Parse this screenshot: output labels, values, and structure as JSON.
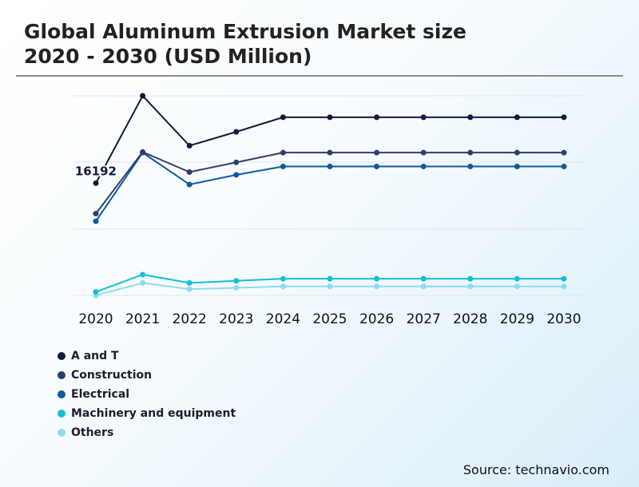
{
  "header": {
    "title_line1": "Global Aluminum Extrusion Market size",
    "title_line2": "2020 - 2030 (USD Million)"
  },
  "source": "Source: technavio.com",
  "chart_data": {
    "type": "line",
    "title": "Global Aluminum Extrusion Market size 2020 - 2030 (USD Million)",
    "x": [
      "2020",
      "2021",
      "2022",
      "2023",
      "2024",
      "2025",
      "2026",
      "2027",
      "2028",
      "2029",
      "2030"
    ],
    "grid": true,
    "legend_position": "bottom-left",
    "annotations": [
      {
        "series": "A and T",
        "x": "2020",
        "label": "16192"
      }
    ],
    "series": [
      {
        "name": "A and T",
        "color": "#0d1b3e",
        "values": [
          16192,
          28800,
          21600,
          23600,
          25700,
          25700,
          25700,
          25700,
          25700,
          25700,
          25700
        ]
      },
      {
        "name": "Construction",
        "color": "#2e3f6e",
        "values": [
          11800,
          20700,
          17800,
          19200,
          20600,
          20600,
          20600,
          20600,
          20600,
          20600,
          20600
        ]
      },
      {
        "name": "Electrical",
        "color": "#0f5aa0",
        "values": [
          10700,
          20600,
          16000,
          17400,
          18600,
          18600,
          18600,
          18600,
          18600,
          18600,
          18600
        ]
      },
      {
        "name": "Machinery and equipment",
        "color": "#13bfd9",
        "values": [
          500,
          3000,
          1800,
          2100,
          2400,
          2400,
          2400,
          2400,
          2400,
          2400,
          2400
        ]
      },
      {
        "name": "Others",
        "color": "#8ddcef",
        "values": [
          0,
          1800,
          900,
          1100,
          1300,
          1300,
          1300,
          1300,
          1300,
          1300,
          1300
        ]
      }
    ]
  }
}
